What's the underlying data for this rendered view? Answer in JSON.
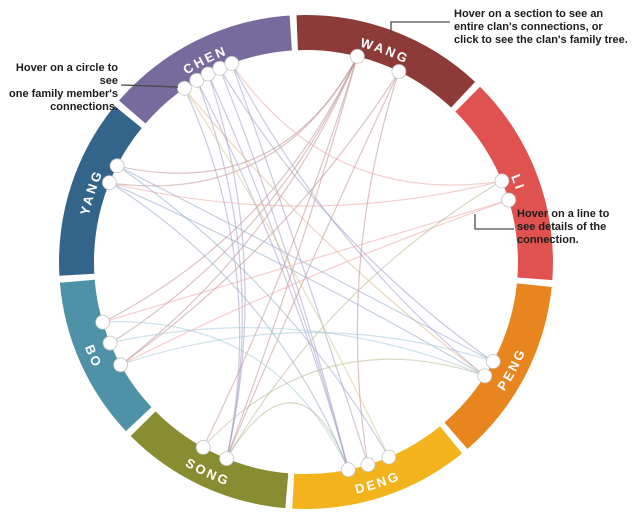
{
  "chart_data": {
    "type": "chord",
    "title": "",
    "clans": [
      {
        "name": "WANG",
        "arc_color": "#8c3b38",
        "link_color": "#bd9191",
        "arc_deg": [
          46,
          93
        ],
        "node_angles": [
          76,
          64
        ]
      },
      {
        "name": "LI",
        "arc_color": "#e05250",
        "link_color": "#efa6a6",
        "arc_deg": [
          -5,
          46
        ],
        "node_angles": [
          22.5,
          17
        ]
      },
      {
        "name": "PENG",
        "arc_color": "#e8851f",
        "link_color": "#d9b492",
        "arc_deg": [
          -50,
          -5
        ],
        "node_angles": [
          -28,
          -32.5
        ]
      },
      {
        "name": "DENG",
        "arc_color": "#f3b31d",
        "link_color": "#d9c386",
        "arc_deg": [
          -94,
          -50
        ],
        "node_angles": [
          -78.5,
          -73,
          -67
        ]
      },
      {
        "name": "SONG",
        "arc_color": "#878d30",
        "link_color": "#b7bc90",
        "arc_deg": [
          -136,
          -94
        ],
        "node_angles": [
          -119,
          -112
        ]
      },
      {
        "name": "BO",
        "arc_color": "#4f92a8",
        "link_color": "#a5c8d8",
        "arc_deg": [
          -176,
          -136
        ],
        "node_angles": [
          -163.5,
          -157.5,
          -151
        ]
      },
      {
        "name": "YANG",
        "arc_color": "#33658a",
        "link_color": "#93a9c9",
        "arc_deg": [
          140,
          184
        ],
        "node_angles": [
          153,
          158
        ]
      },
      {
        "name": "CHEN",
        "arc_color": "#776b9d",
        "link_color": "#a29ac2",
        "arc_deg": [
          93,
          140
        ],
        "node_angles": [
          125,
          121,
          117.5,
          114,
          110.5
        ]
      }
    ],
    "connections": [
      {
        "from": "CHEN.0",
        "to": "SONG.1",
        "color_of": "CHEN"
      },
      {
        "from": "CHEN.1",
        "to": "SONG.1",
        "color_of": "CHEN"
      },
      {
        "from": "CHEN.1",
        "to": "DENG.0",
        "color_of": "CHEN"
      },
      {
        "from": "CHEN.2",
        "to": "SONG.1",
        "color_of": "CHEN"
      },
      {
        "from": "CHEN.2",
        "to": "DENG.0",
        "color_of": "CHEN"
      },
      {
        "from": "CHEN.3",
        "to": "DENG.0",
        "color_of": "CHEN"
      },
      {
        "from": "CHEN.4",
        "to": "DENG.1",
        "color_of": "CHEN"
      },
      {
        "from": "CHEN.3",
        "to": "PENG.0",
        "color_of": "CHEN"
      },
      {
        "from": "CHEN.4",
        "to": "PENG.1",
        "color_of": "CHEN"
      },
      {
        "from": "WANG.0",
        "to": "YANG.0",
        "color_of": "WANG"
      },
      {
        "from": "WANG.0",
        "to": "YANG.1",
        "color_of": "WANG"
      },
      {
        "from": "WANG.0",
        "to": "BO.0",
        "color_of": "WANG"
      },
      {
        "from": "WANG.0",
        "to": "BO.1",
        "color_of": "WANG"
      },
      {
        "from": "WANG.0",
        "to": "BO.2",
        "color_of": "WANG"
      },
      {
        "from": "WANG.0",
        "to": "SONG.0",
        "color_of": "WANG"
      },
      {
        "from": "WANG.0",
        "to": "SONG.1",
        "color_of": "WANG"
      },
      {
        "from": "WANG.1",
        "to": "BO.2",
        "color_of": "WANG"
      },
      {
        "from": "WANG.1",
        "to": "SONG.1",
        "color_of": "WANG"
      },
      {
        "from": "WANG.1",
        "to": "DENG.1",
        "color_of": "WANG"
      },
      {
        "from": "LI.0",
        "to": "CHEN.4",
        "color_of": "LI"
      },
      {
        "from": "LI.0",
        "to": "YANG.1",
        "color_of": "LI"
      },
      {
        "from": "LI.1",
        "to": "BO.2",
        "color_of": "LI"
      },
      {
        "from": "LI.1",
        "to": "BO.0",
        "color_of": "LI"
      },
      {
        "from": "YANG.0",
        "to": "PENG.0",
        "color_of": "YANG"
      },
      {
        "from": "YANG.0",
        "to": "DENG.2",
        "color_of": "YANG"
      },
      {
        "from": "YANG.1",
        "to": "DENG.0",
        "color_of": "YANG"
      },
      {
        "from": "YANG.1",
        "to": "PENG.1",
        "color_of": "YANG"
      },
      {
        "from": "BO.0",
        "to": "DENG.0",
        "color_of": "BO"
      },
      {
        "from": "BO.1",
        "to": "PENG.1",
        "color_of": "BO"
      },
      {
        "from": "BO.2",
        "to": "PENG.0",
        "color_of": "BO"
      },
      {
        "from": "SONG.1",
        "to": "DENG.0",
        "color_of": "SONG"
      },
      {
        "from": "SONG.0",
        "to": "PENG.1",
        "color_of": "SONG"
      },
      {
        "from": "SONG.1",
        "to": "LI.0",
        "color_of": "SONG"
      },
      {
        "from": "DENG.2",
        "to": "CHEN.0",
        "color_of": "DENG"
      },
      {
        "from": "PENG.1",
        "to": "CHEN.0",
        "color_of": "PENG"
      }
    ]
  },
  "callouts": {
    "section": {
      "lines": [
        "Hover on a section to see an",
        "entire clan's connections, or",
        "click to see the clan's family tree."
      ]
    },
    "circle": {
      "lines": [
        "Hover on a circle to see",
        "one family member's",
        "connections."
      ]
    },
    "line": {
      "lines": [
        "Hover on a line to",
        "see details of the",
        "connection."
      ]
    }
  }
}
